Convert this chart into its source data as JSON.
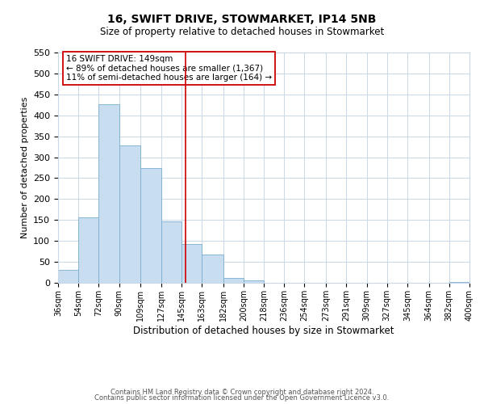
{
  "title": "16, SWIFT DRIVE, STOWMARKET, IP14 5NB",
  "subtitle": "Size of property relative to detached houses in Stowmarket",
  "xlabel": "Distribution of detached houses by size in Stowmarket",
  "ylabel": "Number of detached properties",
  "bar_edges": [
    36,
    54,
    72,
    90,
    109,
    127,
    145,
    163,
    182,
    200,
    218,
    236,
    254,
    273,
    291,
    309,
    327,
    345,
    364,
    382,
    400
  ],
  "bar_heights": [
    30,
    157,
    427,
    329,
    274,
    146,
    93,
    67,
    12,
    5,
    0,
    0,
    0,
    0,
    0,
    0,
    0,
    0,
    0,
    1
  ],
  "tick_labels": [
    "36sqm",
    "54sqm",
    "72sqm",
    "90sqm",
    "109sqm",
    "127sqm",
    "145sqm",
    "163sqm",
    "182sqm",
    "200sqm",
    "218sqm",
    "236sqm",
    "254sqm",
    "273sqm",
    "291sqm",
    "309sqm",
    "327sqm",
    "345sqm",
    "364sqm",
    "382sqm",
    "400sqm"
  ],
  "bar_color": "#c8ddf0",
  "bar_edge_color": "#7aaed0",
  "vline_x": 149,
  "vline_color": "#cc0000",
  "ylim": [
    0,
    550
  ],
  "yticks": [
    0,
    50,
    100,
    150,
    200,
    250,
    300,
    350,
    400,
    450,
    500,
    550
  ],
  "annotation_title": "16 SWIFT DRIVE: 149sqm",
  "annotation_line1": "← 89% of detached houses are smaller (1,367)",
  "annotation_line2": "11% of semi-detached houses are larger (164) →",
  "annotation_box_color": "#ffffff",
  "annotation_box_edge": "#cc0000",
  "footer1": "Contains HM Land Registry data © Crown copyright and database right 2024.",
  "footer2": "Contains public sector information licensed under the Open Government Licence v3.0.",
  "bg_color": "#ffffff",
  "grid_color": "#c8d8e8",
  "title_fontsize": 10,
  "subtitle_fontsize": 8.5,
  "ylabel_fontsize": 8,
  "xlabel_fontsize": 8.5,
  "ytick_fontsize": 8,
  "xtick_fontsize": 7,
  "footer_fontsize": 6,
  "annot_fontsize": 7.5
}
